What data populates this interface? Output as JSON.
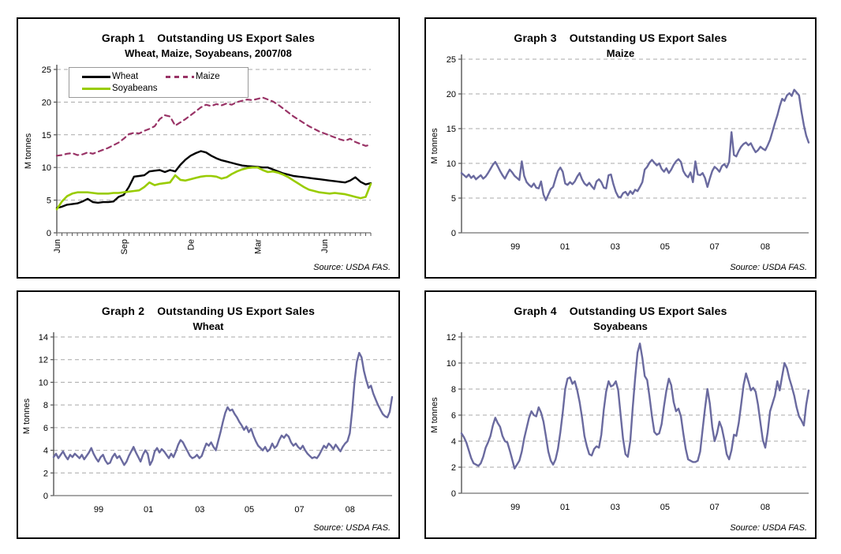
{
  "source_note": "Source: USDA FAS.",
  "colors": {
    "wheat": "#000000",
    "soyabeans": "#99CC00",
    "maize_dashed": "#993366",
    "single_series_line": "#6A6A9F",
    "gridline": "#A8A8A8"
  },
  "chart_data": [
    {
      "id": "graph1",
      "type": "line",
      "title_prefix": "Graph 1",
      "title_main": "Outstanding US Export Sales",
      "subtitle": "Wheat, Maize, Soyabeans, 2007/08",
      "source": "Source: USDA FAS.",
      "y_axis": {
        "label": "M tonnes",
        "range": [
          0,
          25
        ],
        "ticks": [
          0,
          5,
          10,
          15,
          20,
          25
        ],
        "grid": true
      },
      "x_axis": {
        "rotated": true,
        "minor_ticks": 62,
        "labels": [
          {
            "text": "Jun",
            "pos": 0.0
          },
          {
            "text": "Sep",
            "pos": 0.213
          },
          {
            "text": "De",
            "pos": 0.426
          },
          {
            "text": "Mar",
            "pos": 0.639
          },
          {
            "text": "Jun",
            "pos": 0.852
          }
        ]
      },
      "legend": {
        "position": "top-left-inside",
        "order": [
          "Wheat",
          "Maize",
          "Soyabeans"
        ]
      },
      "series": [
        {
          "name": "Wheat",
          "color": "#000000",
          "width": 2.4,
          "dash": null,
          "values": [
            3.8,
            4.0,
            4.3,
            4.4,
            4.5,
            4.8,
            5.2,
            4.7,
            4.6,
            4.7,
            4.7,
            4.8,
            5.5,
            5.8,
            7.0,
            8.6,
            8.7,
            8.8,
            9.4,
            9.5,
            9.6,
            9.3,
            9.6,
            9.4,
            10.4,
            11.2,
            11.8,
            12.2,
            12.5,
            12.3,
            11.8,
            11.4,
            11.1,
            10.9,
            10.7,
            10.5,
            10.3,
            10.2,
            10.15,
            10.1,
            10.0,
            10.0,
            9.7,
            9.4,
            9.1,
            8.9,
            8.7,
            8.6,
            8.5,
            8.4,
            8.3,
            8.2,
            8.1,
            8.0,
            7.9,
            7.8,
            7.7,
            8.0,
            8.5,
            7.8,
            7.4,
            7.6
          ]
        },
        {
          "name": "Soyabeans",
          "color": "#99CC00",
          "width": 2.6,
          "dash": null,
          "values": [
            3.6,
            4.8,
            5.6,
            6.0,
            6.2,
            6.2,
            6.2,
            6.1,
            6.0,
            6.0,
            6.0,
            6.1,
            6.1,
            6.2,
            6.3,
            6.4,
            6.5,
            7.0,
            7.7,
            7.3,
            7.5,
            7.6,
            7.7,
            8.8,
            8.1,
            8.0,
            8.2,
            8.4,
            8.6,
            8.7,
            8.7,
            8.6,
            8.3,
            8.5,
            9.0,
            9.4,
            9.7,
            9.9,
            10.0,
            10.0,
            9.6,
            9.3,
            9.4,
            9.2,
            8.9,
            8.5,
            8.0,
            7.5,
            7.0,
            6.6,
            6.4,
            6.2,
            6.1,
            6.0,
            6.1,
            6.0,
            5.9,
            5.7,
            5.5,
            5.3,
            5.5,
            7.5
          ]
        },
        {
          "name": "Maize",
          "color": "#993366",
          "width": 2.2,
          "dash": "6 5",
          "values": [
            11.8,
            11.9,
            12.1,
            12.2,
            11.9,
            12.0,
            12.3,
            12.1,
            12.4,
            12.7,
            13.0,
            13.4,
            13.8,
            14.4,
            15.1,
            15.3,
            15.2,
            15.6,
            15.9,
            16.3,
            17.4,
            18.0,
            17.8,
            16.4,
            16.9,
            17.4,
            18.0,
            18.6,
            19.2,
            19.6,
            19.4,
            19.7,
            19.5,
            19.8,
            19.6,
            20.0,
            20.2,
            20.4,
            20.3,
            20.5,
            20.7,
            20.4,
            20.1,
            19.6,
            19.0,
            18.4,
            17.8,
            17.3,
            16.8,
            16.3,
            15.9,
            15.5,
            15.2,
            14.9,
            14.6,
            14.3,
            14.1,
            14.4,
            13.9,
            13.6,
            13.3,
            13.5
          ]
        }
      ]
    },
    {
      "id": "graph3",
      "type": "line",
      "title_prefix": "Graph 3",
      "title_main": "Outstanding US Export Sales",
      "subtitle": "Maize",
      "source": "Source: USDA FAS.",
      "y_axis": {
        "label": "M tonnes",
        "range": [
          0,
          25
        ],
        "ticks": [
          0,
          5,
          10,
          15,
          20,
          25
        ],
        "grid": true
      },
      "x_axis": {
        "rotated": false,
        "labels": [
          {
            "text": "99",
            "pos": 0.155
          },
          {
            "text": "01",
            "pos": 0.298
          },
          {
            "text": "03",
            "pos": 0.443
          },
          {
            "text": "05",
            "pos": 0.586
          },
          {
            "text": "07",
            "pos": 0.729
          },
          {
            "text": "08",
            "pos": 0.875
          }
        ]
      },
      "series": [
        {
          "name": "Maize",
          "color": "#6A6A9F",
          "width": 2.4,
          "dash": null,
          "values": [
            8.6,
            8.3,
            8.0,
            8.4,
            7.9,
            8.2,
            7.7,
            8.0,
            8.3,
            7.8,
            8.1,
            8.6,
            9.2,
            9.8,
            10.2,
            9.6,
            8.9,
            8.3,
            7.8,
            8.5,
            9.1,
            8.7,
            8.2,
            7.9,
            7.6,
            10.3,
            8.2,
            7.3,
            6.9,
            6.6,
            7.1,
            6.5,
            6.4,
            7.4,
            5.5,
            4.7,
            5.5,
            6.3,
            6.6,
            7.8,
            8.9,
            9.4,
            8.8,
            7.1,
            6.9,
            7.3,
            7.0,
            7.4,
            8.1,
            8.6,
            7.7,
            7.1,
            6.8,
            7.2,
            6.7,
            6.3,
            7.4,
            7.7,
            7.3,
            6.5,
            6.4,
            8.3,
            8.4,
            7.0,
            5.9,
            5.2,
            5.1,
            5.7,
            5.9,
            5.4,
            6.0,
            5.6,
            6.2,
            6.0,
            6.6,
            7.3,
            9.1,
            9.5,
            10.1,
            10.5,
            10.1,
            9.7,
            10.0,
            9.2,
            8.8,
            9.3,
            8.6,
            9.1,
            9.8,
            10.3,
            10.6,
            10.2,
            8.9,
            8.3,
            8.0,
            8.7,
            7.3,
            10.3,
            8.4,
            8.3,
            8.6,
            7.9,
            6.6,
            7.8,
            8.9,
            9.5,
            9.2,
            8.8,
            9.6,
            9.9,
            9.4,
            10.2,
            14.5,
            11.2,
            11.0,
            11.8,
            12.4,
            12.8,
            13.0,
            12.6,
            12.9,
            12.2,
            11.6,
            11.9,
            12.4,
            12.1,
            11.9,
            12.6,
            13.4,
            14.6,
            15.8,
            16.9,
            18.2,
            19.3,
            19.0,
            19.8,
            20.1,
            19.7,
            20.6,
            20.2,
            19.8,
            17.5,
            15.5,
            14.0,
            13.0
          ]
        }
      ]
    },
    {
      "id": "graph2",
      "type": "line",
      "title_prefix": "Graph 2",
      "title_main": "Outstanding US Export Sales",
      "subtitle": "Wheat",
      "source": "Source: USDA FAS.",
      "y_axis": {
        "label": "M tonnes",
        "range": [
          0,
          14
        ],
        "ticks": [
          0,
          2,
          4,
          6,
          8,
          10,
          12,
          14
        ],
        "grid": true
      },
      "x_axis": {
        "rotated": false,
        "labels": [
          {
            "text": "99",
            "pos": 0.133
          },
          {
            "text": "01",
            "pos": 0.28
          },
          {
            "text": "03",
            "pos": 0.432
          },
          {
            "text": "05",
            "pos": 0.578
          },
          {
            "text": "07",
            "pos": 0.726
          },
          {
            "text": "08",
            "pos": 0.876
          }
        ]
      },
      "series": [
        {
          "name": "Wheat",
          "color": "#6A6A9F",
          "width": 2.4,
          "dash": null,
          "values": [
            3.4,
            3.7,
            3.3,
            3.6,
            3.9,
            3.5,
            3.2,
            3.6,
            3.4,
            3.7,
            3.5,
            3.3,
            3.6,
            3.2,
            3.5,
            3.8,
            4.2,
            3.7,
            3.3,
            3.0,
            3.4,
            3.6,
            3.1,
            2.8,
            2.9,
            3.4,
            3.7,
            3.3,
            3.5,
            3.1,
            2.7,
            3.0,
            3.5,
            3.9,
            4.3,
            3.8,
            3.4,
            3.0,
            3.6,
            4.0,
            3.7,
            2.7,
            3.1,
            3.9,
            4.2,
            3.8,
            4.1,
            3.9,
            3.6,
            3.3,
            3.7,
            3.4,
            3.9,
            4.5,
            4.9,
            4.7,
            4.3,
            3.9,
            3.5,
            3.3,
            3.4,
            3.6,
            3.3,
            3.5,
            4.1,
            4.6,
            4.4,
            4.7,
            4.3,
            4.0,
            4.8,
            5.6,
            6.5,
            7.3,
            7.8,
            7.5,
            7.6,
            7.2,
            6.9,
            6.5,
            6.2,
            5.8,
            6.1,
            5.6,
            5.9,
            5.3,
            4.8,
            4.4,
            4.2,
            4.0,
            4.3,
            3.9,
            4.1,
            4.6,
            4.2,
            4.4,
            4.9,
            5.3,
            5.1,
            5.4,
            5.2,
            4.7,
            4.4,
            4.6,
            4.3,
            4.1,
            4.4,
            4.0,
            3.7,
            3.5,
            3.3,
            3.4,
            3.3,
            3.6,
            4.0,
            4.4,
            4.2,
            4.6,
            4.4,
            4.1,
            4.5,
            4.2,
            3.9,
            4.3,
            4.6,
            4.8,
            5.5,
            7.5,
            10.0,
            11.8,
            12.6,
            12.2,
            11.0,
            10.2,
            9.5,
            9.7,
            9.0,
            8.5,
            8.0,
            7.6,
            7.2,
            7.0,
            6.9,
            7.4,
            8.7
          ]
        }
      ]
    },
    {
      "id": "graph4",
      "type": "line",
      "title_prefix": "Graph 4",
      "title_main": "Outstanding US Export Sales",
      "subtitle": "Soyabeans",
      "source": "Source: USDA FAS.",
      "y_axis": {
        "label": "M tonnes",
        "range": [
          0,
          12
        ],
        "ticks": [
          0,
          2,
          4,
          6,
          8,
          10,
          12
        ],
        "grid": true
      },
      "x_axis": {
        "rotated": false,
        "labels": [
          {
            "text": "99",
            "pos": 0.155
          },
          {
            "text": "01",
            "pos": 0.298
          },
          {
            "text": "03",
            "pos": 0.443
          },
          {
            "text": "05",
            "pos": 0.586
          },
          {
            "text": "07",
            "pos": 0.729
          },
          {
            "text": "08",
            "pos": 0.875
          }
        ]
      },
      "series": [
        {
          "name": "Soyabeans",
          "color": "#6A6A9F",
          "width": 2.4,
          "dash": null,
          "values": [
            4.6,
            4.3,
            3.9,
            3.3,
            2.7,
            2.3,
            2.2,
            2.1,
            2.3,
            2.8,
            3.5,
            3.9,
            4.4,
            5.2,
            5.8,
            5.4,
            5.1,
            4.4,
            4.0,
            3.9,
            3.3,
            2.6,
            1.9,
            2.2,
            2.5,
            3.2,
            4.2,
            5.0,
            5.8,
            6.3,
            6.0,
            5.9,
            6.6,
            6.2,
            5.5,
            4.4,
            3.2,
            2.5,
            2.2,
            2.6,
            3.4,
            4.7,
            6.2,
            8.0,
            8.8,
            8.9,
            8.4,
            8.6,
            7.9,
            7.0,
            5.8,
            4.4,
            3.6,
            3.0,
            2.9,
            3.4,
            3.6,
            3.5,
            4.5,
            6.4,
            7.8,
            8.6,
            8.2,
            8.3,
            8.6,
            7.9,
            6.0,
            4.2,
            3.0,
            2.8,
            4.0,
            6.5,
            8.8,
            10.8,
            11.5,
            10.4,
            9.0,
            8.7,
            7.4,
            5.9,
            4.7,
            4.5,
            4.6,
            5.3,
            6.7,
            7.9,
            8.8,
            8.3,
            7.0,
            6.3,
            6.5,
            5.9,
            4.6,
            3.4,
            2.6,
            2.5,
            2.4,
            2.4,
            2.5,
            3.2,
            4.9,
            6.5,
            8.0,
            6.9,
            5.1,
            4.0,
            4.6,
            5.5,
            5.0,
            4.1,
            3.0,
            2.6,
            3.3,
            4.5,
            4.4,
            5.4,
            6.8,
            8.3,
            9.2,
            8.6,
            7.9,
            8.1,
            7.8,
            6.8,
            5.4,
            4.1,
            3.5,
            4.7,
            6.3,
            6.9,
            7.5,
            8.6,
            7.9,
            9.0,
            10.0,
            9.6,
            8.8,
            8.2,
            7.5,
            6.6,
            5.9,
            5.6,
            5.2,
            6.8,
            7.9
          ]
        }
      ]
    }
  ]
}
